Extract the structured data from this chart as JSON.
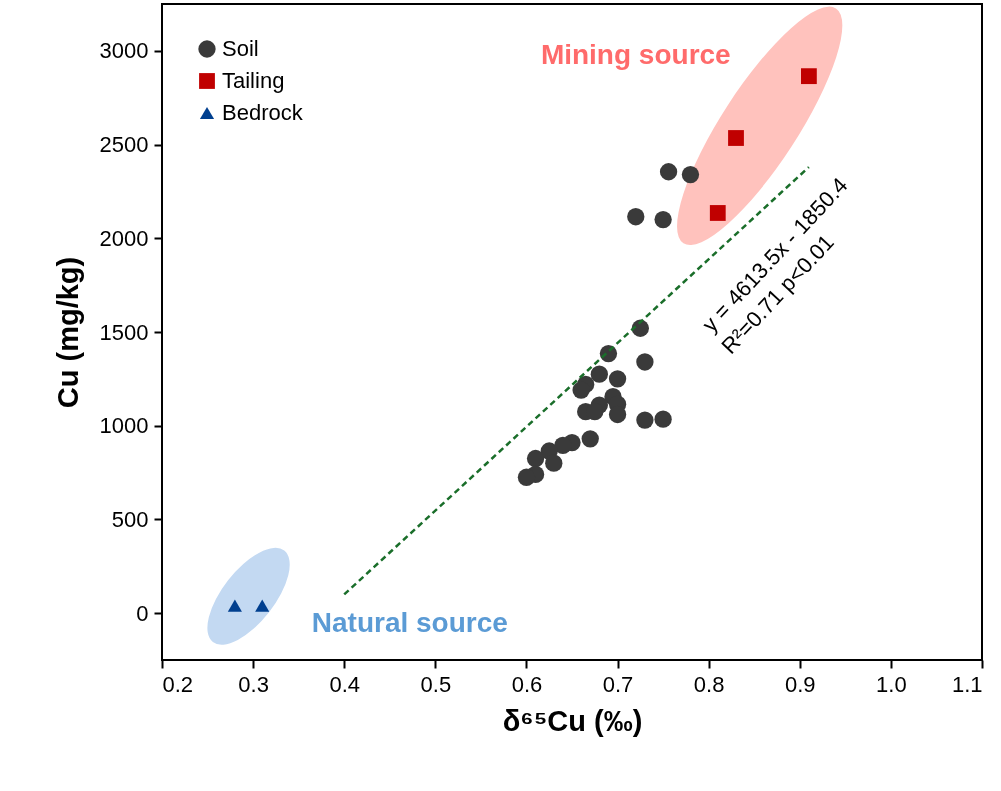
{
  "chart_data": {
    "type": "scatter",
    "xlabel": "δ⁶⁵Cu (‰)",
    "ylabel": "Cu (mg/kg)",
    "xlim": [
      0.2,
      1.1
    ],
    "ylim": [
      -250,
      3250
    ],
    "xticks": [
      0.2,
      0.3,
      0.4,
      0.5,
      0.6,
      0.7,
      0.8,
      0.9,
      {
        "value": 1,
        "label": "1.0"
      },
      1.1
    ],
    "yticks": [
      0,
      500,
      1000,
      1500,
      2000,
      2500,
      3000
    ],
    "grid": false,
    "legend": "top left",
    "series": [
      {
        "name": "Soil",
        "color": "#3a3a3a",
        "marker": "circle",
        "x": [
          0.756,
          0.78,
          0.72,
          0.75,
          0.725,
          0.69,
          0.73,
          0.665,
          0.66,
          0.68,
          0.7,
          0.695,
          0.7,
          0.7,
          0.68,
          0.665,
          0.675,
          0.73,
          0.75,
          0.67,
          0.65,
          0.64,
          0.625,
          0.63,
          0.61,
          0.61,
          0.6
        ],
        "values": [
          2355,
          2340,
          2115,
          2100,
          1520,
          1385,
          1340,
          1220,
          1190,
          1275,
          1250,
          1155,
          1115,
          1060,
          1110,
          1075,
          1075,
          1030,
          1035,
          930,
          910,
          895,
          865,
          800,
          825,
          740,
          725
        ]
      },
      {
        "name": "Tailing",
        "color": "#c00000",
        "marker": "square",
        "x": [
          0.83,
          0.81,
          0.91
        ],
        "values": [
          2535,
          2135,
          2865
        ]
      },
      {
        "name": "Bedrock",
        "color": "#003f8f",
        "marker": "triangle",
        "x": [
          0.28,
          0.31
        ],
        "values": [
          40,
          40
        ]
      },
      {
        "type": "line",
        "color": "#1a6e2a",
        "line_style": "dashed",
        "x": [
          0.4,
          0.91
        ],
        "values": [
          100,
          2380
        ]
      }
    ],
    "annotations": [
      "Mining source",
      "Natural source",
      "y = 4613.5x - 1850.4",
      "R²=0.71 p<0.01"
    ]
  }
}
